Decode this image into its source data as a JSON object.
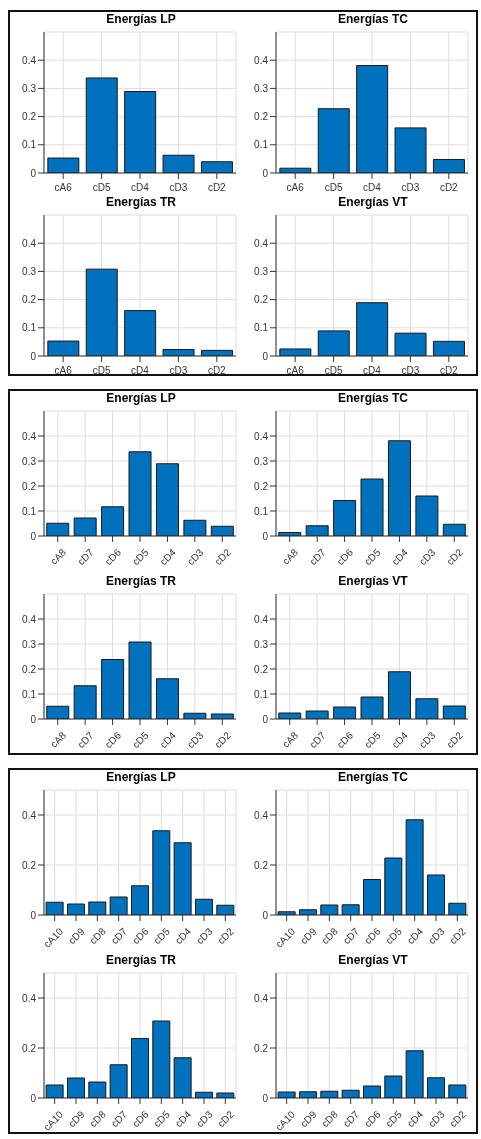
{
  "chart_data": [
    {
      "type": "bar",
      "title": "Energías LP",
      "categories": [
        "cA6",
        "cD5",
        "cD4",
        "cD3",
        "cD2"
      ],
      "values": [
        0.053,
        0.337,
        0.289,
        0.063,
        0.04
      ],
      "color": "#0072bd",
      "ylim": [
        0,
        0.5
      ],
      "yticks": [
        0,
        0.1,
        0.2,
        0.3,
        0.4
      ],
      "grid": true
    },
    {
      "type": "bar",
      "title": "Energías TC",
      "categories": [
        "cA6",
        "cD5",
        "cD4",
        "cD3",
        "cD2"
      ],
      "values": [
        0.017,
        0.228,
        0.381,
        0.16,
        0.048
      ],
      "color": "#0072bd",
      "ylim": [
        0,
        0.5
      ],
      "yticks": [
        0,
        0.1,
        0.2,
        0.3,
        0.4
      ],
      "grid": true
    },
    {
      "type": "bar",
      "title": "Energías TR",
      "categories": [
        "cA6",
        "cD5",
        "cD4",
        "cD3",
        "cD2"
      ],
      "values": [
        0.053,
        0.308,
        0.161,
        0.023,
        0.02
      ],
      "color": "#0072bd",
      "ylim": [
        0,
        0.5
      ],
      "yticks": [
        0,
        0.1,
        0.2,
        0.3,
        0.4
      ],
      "grid": true
    },
    {
      "type": "bar",
      "title": "Energías VT",
      "categories": [
        "cA6",
        "cD5",
        "cD4",
        "cD3",
        "cD2"
      ],
      "values": [
        0.025,
        0.089,
        0.189,
        0.081,
        0.052
      ],
      "color": "#0072bd",
      "ylim": [
        0,
        0.5
      ],
      "yticks": [
        0,
        0.1,
        0.2,
        0.3,
        0.4
      ],
      "grid": true
    },
    {
      "type": "bar",
      "title": "Energías LP",
      "categories": [
        "cA8",
        "cD7",
        "cD6",
        "cD5",
        "cD4",
        "cD3",
        "cD2"
      ],
      "values": [
        0.051,
        0.072,
        0.117,
        0.337,
        0.289,
        0.063,
        0.039
      ],
      "color": "#0072bd",
      "ylim": [
        0,
        0.5
      ],
      "yticks": [
        0,
        0.1,
        0.2,
        0.3,
        0.4
      ],
      "grid": true
    },
    {
      "type": "bar",
      "title": "Energías TC",
      "categories": [
        "cA8",
        "cD7",
        "cD6",
        "cD5",
        "cD4",
        "cD3",
        "cD2"
      ],
      "values": [
        0.014,
        0.041,
        0.142,
        0.228,
        0.381,
        0.16,
        0.047
      ],
      "color": "#0072bd",
      "ylim": [
        0,
        0.5
      ],
      "yticks": [
        0,
        0.1,
        0.2,
        0.3,
        0.4
      ],
      "grid": true
    },
    {
      "type": "bar",
      "title": "Energías TR",
      "categories": [
        "cA8",
        "cD7",
        "cD6",
        "cD5",
        "cD4",
        "cD3",
        "cD2"
      ],
      "values": [
        0.051,
        0.133,
        0.238,
        0.308,
        0.161,
        0.023,
        0.02
      ],
      "color": "#0072bd",
      "ylim": [
        0,
        0.5
      ],
      "yticks": [
        0,
        0.1,
        0.2,
        0.3,
        0.4
      ],
      "grid": true
    },
    {
      "type": "bar",
      "title": "Energías VT",
      "categories": [
        "cA8",
        "cD7",
        "cD6",
        "cD5",
        "cD4",
        "cD3",
        "cD2"
      ],
      "values": [
        0.024,
        0.032,
        0.048,
        0.088,
        0.189,
        0.081,
        0.052
      ],
      "color": "#0072bd",
      "ylim": [
        0,
        0.5
      ],
      "yticks": [
        0,
        0.1,
        0.2,
        0.3,
        0.4
      ],
      "grid": true
    },
    {
      "type": "bar",
      "title": "Energías LP",
      "categories": [
        "cA10",
        "cD9",
        "cD8",
        "cD7",
        "cD6",
        "cD5",
        "cD4",
        "cD3",
        "cD2"
      ],
      "values": [
        0.051,
        0.044,
        0.052,
        0.072,
        0.117,
        0.337,
        0.289,
        0.063,
        0.039
      ],
      "color": "#0072bd",
      "ylim": [
        0,
        0.5
      ],
      "yticks": [
        0,
        0.2,
        0.4
      ],
      "grid": true
    },
    {
      "type": "bar",
      "title": "Energías TC",
      "categories": [
        "cA10",
        "cD9",
        "cD8",
        "cD7",
        "cD6",
        "cD5",
        "cD4",
        "cD3",
        "cD2"
      ],
      "values": [
        0.013,
        0.021,
        0.04,
        0.041,
        0.142,
        0.228,
        0.381,
        0.16,
        0.047
      ],
      "color": "#0072bd",
      "ylim": [
        0,
        0.5
      ],
      "yticks": [
        0,
        0.2,
        0.4
      ],
      "grid": true
    },
    {
      "type": "bar",
      "title": "Energías TR",
      "categories": [
        "cA10",
        "cD9",
        "cD8",
        "cD7",
        "cD6",
        "cD5",
        "cD4",
        "cD3",
        "cD2"
      ],
      "values": [
        0.052,
        0.08,
        0.064,
        0.133,
        0.238,
        0.308,
        0.161,
        0.023,
        0.02
      ],
      "color": "#0072bd",
      "ylim": [
        0,
        0.5
      ],
      "yticks": [
        0,
        0.2,
        0.4
      ],
      "grid": true
    },
    {
      "type": "bar",
      "title": "Energías VT",
      "categories": [
        "cA10",
        "cD9",
        "cD8",
        "cD7",
        "cD6",
        "cD5",
        "cD4",
        "cD3",
        "cD2"
      ],
      "values": [
        0.024,
        0.025,
        0.027,
        0.031,
        0.048,
        0.088,
        0.189,
        0.081,
        0.052
      ],
      "color": "#0072bd",
      "ylim": [
        0,
        0.5
      ],
      "yticks": [
        0,
        0.2,
        0.4
      ],
      "grid": true
    }
  ]
}
